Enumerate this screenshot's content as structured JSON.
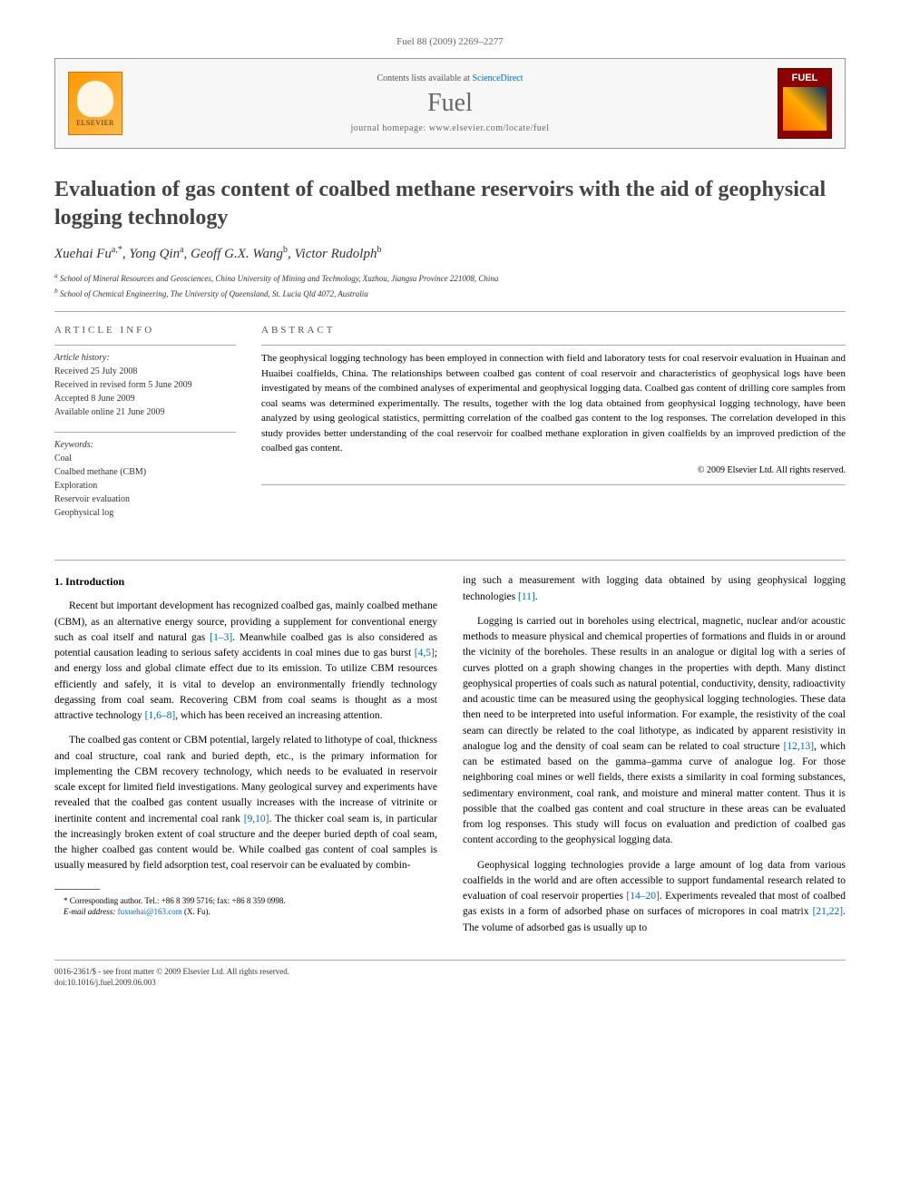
{
  "journal_ref": "Fuel 88 (2009) 2269–2277",
  "header": {
    "contents_prefix": "Contents lists available at ",
    "contents_link": "ScienceDirect",
    "journal_name": "Fuel",
    "homepage_prefix": "journal homepage: ",
    "homepage_url": "www.elsevier.com/locate/fuel",
    "elsevier_label": "ELSEVIER",
    "cover_label": "FUEL"
  },
  "title": "Evaluation of gas content of coalbed methane reservoirs with the aid of geophysical logging technology",
  "authors_html": "Xuehai Fu<sup>a,*</sup>, Yong Qin<sup>a</sup>, Geoff G.X. Wang<sup>b</sup>, Victor Rudolph<sup>b</sup>",
  "affiliations": {
    "a": "School of Mineral Resources and Geosciences, China University of Mining and Technology, Xuzhou, Jiangsu Province 221008, China",
    "b": "School of Chemical Engineering, The University of Queensland, St. Lucia Qld 4072, Australia"
  },
  "article_info": {
    "heading": "ARTICLE INFO",
    "history_label": "Article history:",
    "received": "Received 25 July 2008",
    "revised": "Received in revised form 5 June 2009",
    "accepted": "Accepted 8 June 2009",
    "online": "Available online 21 June 2009",
    "keywords_label": "Keywords:",
    "keywords": [
      "Coal",
      "Coalbed methane (CBM)",
      "Exploration",
      "Reservoir evaluation",
      "Geophysical log"
    ]
  },
  "abstract": {
    "heading": "ABSTRACT",
    "text": "The geophysical logging technology has been employed in connection with field and laboratory tests for coal reservoir evaluation in Huainan and Huaibei coalfields, China. The relationships between coalbed gas content of coal reservoir and characteristics of geophysical logs have been investigated by means of the combined analyses of experimental and geophysical logging data. Coalbed gas content of drilling core samples from coal seams was determined experimentally. The results, together with the log data obtained from geophysical logging technology, have been analyzed by using geological statistics, permitting correlation of the coalbed gas content to the log responses. The correlation developed in this study provides better understanding of the coal reservoir for coalbed methane exploration in given coalfields by an improved prediction of the coalbed gas content.",
    "copyright": "© 2009 Elsevier Ltd. All rights reserved."
  },
  "body": {
    "section_heading": "1. Introduction",
    "left_paras": [
      "Recent but important development has recognized coalbed gas, mainly coalbed methane (CBM), as an alternative energy source, providing a supplement for conventional energy such as coal itself and natural gas [1–3]. Meanwhile coalbed gas is also considered as potential causation leading to serious safety accidents in coal mines due to gas burst [4,5]; and energy loss and global climate effect due to its emission. To utilize CBM resources efficiently and safely, it is vital to develop an environmentally friendly technology degassing from coal seam. Recovering CBM from coal seams is thought as a most attractive technology [1,6–8], which has been received an increasing attention.",
      "The coalbed gas content or CBM potential, largely related to lithotype of coal, thickness and coal structure, coal rank and buried depth, etc., is the primary information for implementing the CBM recovery technology, which needs to be evaluated in reservoir scale except for limited field investigations. Many geological survey and experiments have revealed that the coalbed gas content usually increases with the increase of vitrinite or inertinite content and incremental coal rank [9,10]. The thicker coal seam is, in particular the increasingly broken extent of coal structure and the deeper buried depth of coal seam, the higher coalbed gas content would be. While coalbed gas content of coal samples is usually measured by field adsorption test, coal reservoir can be evaluated by combin-"
    ],
    "right_paras": [
      "ing such a measurement with logging data obtained by using geophysical logging technologies [11].",
      "Logging is carried out in boreholes using electrical, magnetic, nuclear and/or acoustic methods to measure physical and chemical properties of formations and fluids in or around the vicinity of the boreholes. These results in an analogue or digital log with a series of curves plotted on a graph showing changes in the properties with depth. Many distinct geophysical properties of coals such as natural potential, conductivity, density, radioactivity and acoustic time can be measured using the geophysical logging technologies. These data then need to be interpreted into useful information. For example, the resistivity of the coal seam can directly be related to the coal lithotype, as indicated by apparent resistivity in analogue log and the density of coal seam can be related to coal structure [12,13], which can be estimated based on the gamma–gamma curve of analogue log. For those neighboring coal mines or well fields, there exists a similarity in coal forming substances, sedimentary environment, coal rank, and moisture and mineral matter content. Thus it is possible that the coalbed gas content and coal structure in these areas can be evaluated from log responses. This study will focus on evaluation and prediction of coalbed gas content according to the geophysical logging data.",
      "Geophysical logging technologies provide a large amount of log data from various coalfields in the world and are often accessible to support fundamental research related to evaluation of coal reservoir properties [14–20]. Experiments revealed that most of coalbed gas exists in a form of adsorbed phase on surfaces of micropores in coal matrix [21,22]. The volume of adsorbed gas is usually up to"
    ]
  },
  "footnote": {
    "corresponding": "* Corresponding author. Tel.: +86 8 399 5716; fax: +86 8 359 0998.",
    "email_label": "E-mail address:",
    "email": "fuxuehai@163.com",
    "email_suffix": "(X. Fu)."
  },
  "bottom": {
    "issn": "0016-2361/$ - see front matter © 2009 Elsevier Ltd. All rights reserved.",
    "doi": "doi:10.1016/j.fuel.2009.06.003"
  }
}
